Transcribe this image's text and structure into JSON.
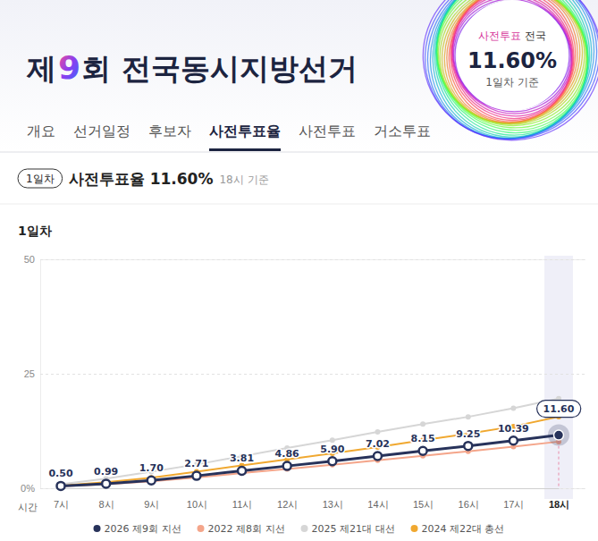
{
  "header": {
    "title": [
      "제",
      "9",
      "회 전국동시지방선거"
    ],
    "badge": {
      "highlight": "사전투표",
      "text": "전국",
      "value": "11.60%",
      "note": "1일차 기준"
    }
  },
  "tabs": [
    {
      "label": "개요"
    },
    {
      "label": "선거일정"
    },
    {
      "label": "후보자"
    },
    {
      "label": "사전투표율",
      "active": true
    },
    {
      "label": "사전투표"
    },
    {
      "label": "거소투표"
    }
  ],
  "summary": {
    "badge": "1일차",
    "label": "사전투표율",
    "value": "11.60%",
    "note": "18시 기준"
  },
  "chart_data": {
    "type": "line",
    "title": "1일차",
    "x_label": "시간",
    "categories": [
      "7시",
      "8시",
      "9시",
      "10시",
      "11시",
      "12시",
      "13시",
      "14시",
      "15시",
      "16시",
      "17시",
      "18시"
    ],
    "ylim": [
      0,
      50
    ],
    "yticks": [
      {
        "value": 0,
        "label": "0%"
      },
      25,
      50
    ],
    "grid": true,
    "legend": "bottom",
    "data_labels": true,
    "series": [
      {
        "name": "2026 제9회 지선",
        "color": "#27325a",
        "marker": "hollow",
        "values": [
          0.5,
          0.99,
          1.7,
          2.71,
          3.81,
          4.86,
          5.9,
          7.02,
          8.15,
          9.25,
          10.39,
          11.6
        ],
        "value_labels": [
          "0.50",
          "0.99",
          "1.70",
          "2.71",
          "3.81",
          "4.86",
          "5.90",
          "7.02",
          "8.15",
          "9.25",
          "10.39",
          "11.60"
        ]
      },
      {
        "name": "2022 제8회 지선",
        "color": "#f4a58a",
        "marker": "circle",
        "values": [
          0.45,
          0.88,
          1.5,
          2.36,
          3.3,
          4.21,
          5.15,
          6.08,
          7.06,
          8.07,
          9.07,
          10.18
        ]
      },
      {
        "name": "2025 제21대 대선",
        "color": "#d6d6d6",
        "marker": "circle",
        "values": [
          0.9,
          2.1,
          3.6,
          5.2,
          7.0,
          8.8,
          10.5,
          12.3,
          14.0,
          15.6,
          17.5,
          19.58
        ]
      },
      {
        "name": "2024 제22대 총선",
        "color": "#f0a830",
        "marker": "circle",
        "values": [
          0.6,
          1.3,
          2.3,
          3.6,
          5.0,
          6.3,
          7.6,
          9.0,
          10.5,
          11.9,
          13.5,
          15.61
        ]
      }
    ]
  }
}
